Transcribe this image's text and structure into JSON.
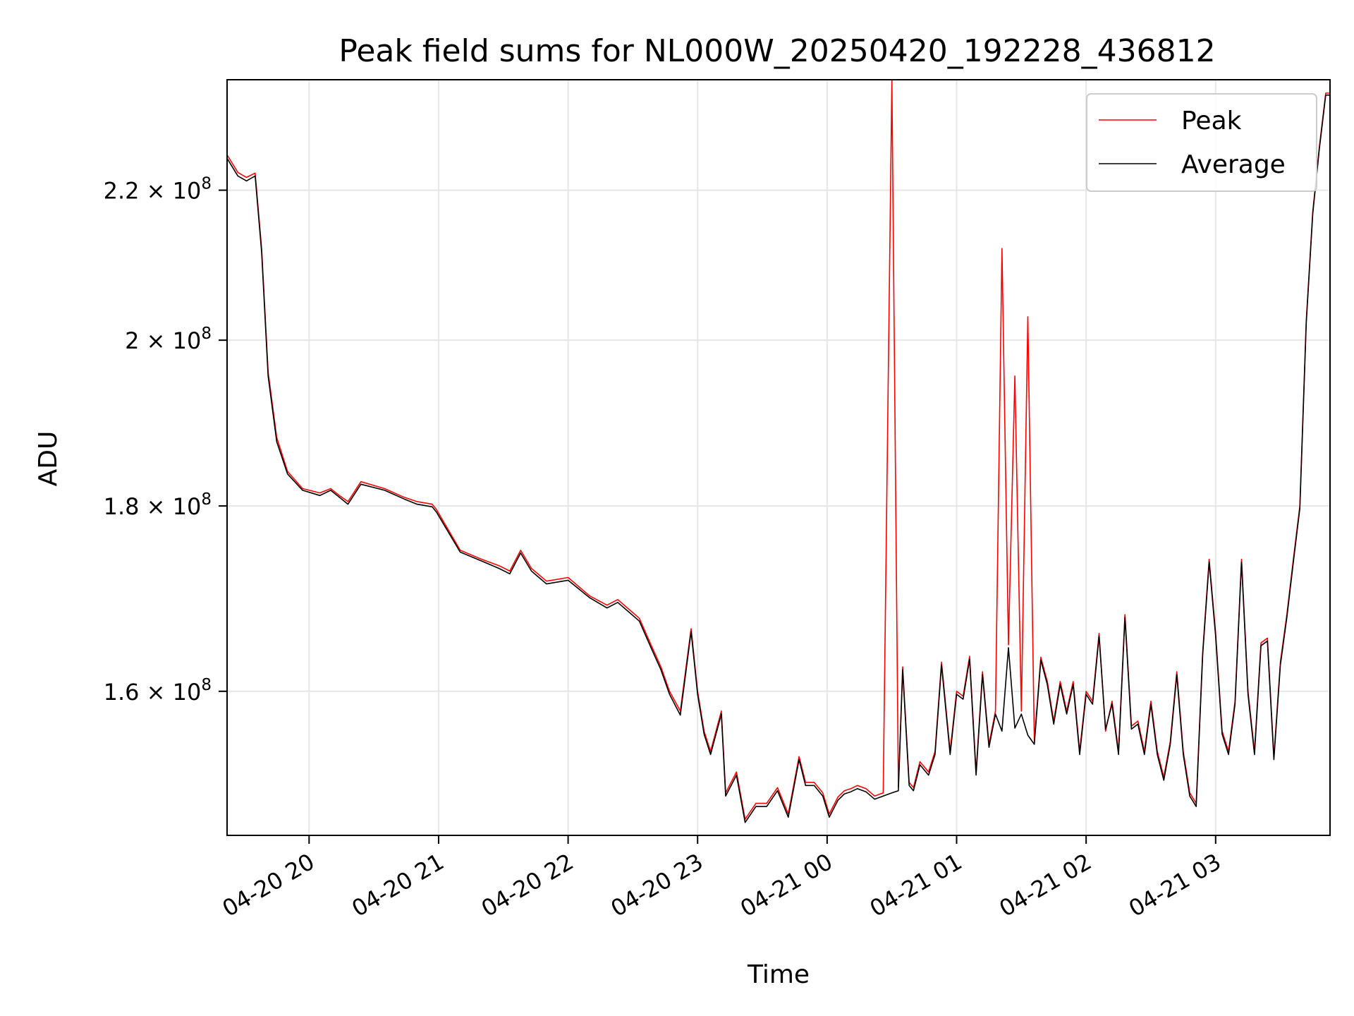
{
  "chart_data": {
    "type": "line",
    "title": "Peak field sums for NL000W_20250420_192228_436812",
    "xlabel": "Time",
    "ylabel": "ADU",
    "x_axis_type": "time",
    "xlim": [
      "2025-04-20 19:22",
      "2025-04-21 03:53"
    ],
    "ylim": [
      146000000,
      236000000
    ],
    "y_scale": "log",
    "grid": true,
    "legend_position": "top-right",
    "x_ticks": [
      {
        "value": "2025-04-20 20:00",
        "label": "04-20 20"
      },
      {
        "value": "2025-04-20 21:00",
        "label": "04-20 21"
      },
      {
        "value": "2025-04-20 22:00",
        "label": "04-20 22"
      },
      {
        "value": "2025-04-20 23:00",
        "label": "04-20 23"
      },
      {
        "value": "2025-04-21 00:00",
        "label": "04-21 00"
      },
      {
        "value": "2025-04-21 01:00",
        "label": "04-21 01"
      },
      {
        "value": "2025-04-21 02:00",
        "label": "04-21 02"
      },
      {
        "value": "2025-04-21 03:00",
        "label": "04-21 03"
      }
    ],
    "y_ticks": [
      {
        "value": 160000000,
        "mantissa": "1.6",
        "times": "×",
        "base": "10",
        "exp": "8"
      },
      {
        "value": 180000000,
        "mantissa": "1.8",
        "times": "×",
        "base": "10",
        "exp": "8"
      },
      {
        "value": 200000000,
        "mantissa": "2",
        "times": "×",
        "base": "10",
        "exp": "8"
      },
      {
        "value": 220000000,
        "mantissa": "2.2",
        "times": "×",
        "base": "10",
        "exp": "8"
      }
    ],
    "x": [
      "2025-04-20 19:22",
      "2025-04-20 19:27",
      "2025-04-20 19:31",
      "2025-04-20 19:35",
      "2025-04-20 19:38",
      "2025-04-20 19:41",
      "2025-04-20 19:45",
      "2025-04-20 19:50",
      "2025-04-20 19:57",
      "2025-04-20 20:05",
      "2025-04-20 20:10",
      "2025-04-20 20:14",
      "2025-04-20 20:18",
      "2025-04-20 20:24",
      "2025-04-20 20:35",
      "2025-04-20 20:44",
      "2025-04-20 20:50",
      "2025-04-20 20:57",
      "2025-04-20 20:59",
      "2025-04-20 21:10",
      "2025-04-20 21:20",
      "2025-04-20 21:28",
      "2025-04-20 21:33",
      "2025-04-20 21:38",
      "2025-04-20 21:43",
      "2025-04-20 21:50",
      "2025-04-20 22:00",
      "2025-04-20 22:10",
      "2025-04-20 22:18",
      "2025-04-20 22:23",
      "2025-04-20 22:33",
      "2025-04-20 22:38",
      "2025-04-20 22:43",
      "2025-04-20 22:47",
      "2025-04-20 22:52",
      "2025-04-20 22:57",
      "2025-04-20 23:00",
      "2025-04-20 23:03",
      "2025-04-20 23:06",
      "2025-04-20 23:11",
      "2025-04-20 23:13",
      "2025-04-20 23:18",
      "2025-04-20 23:22",
      "2025-04-20 23:27",
      "2025-04-20 23:32",
      "2025-04-20 23:37",
      "2025-04-20 23:42",
      "2025-04-20 23:47",
      "2025-04-20 23:50",
      "2025-04-20 23:54",
      "2025-04-20 23:58",
      "2025-04-21 00:01",
      "2025-04-21 00:05",
      "2025-04-21 00:08",
      "2025-04-21 00:11",
      "2025-04-21 00:14",
      "2025-04-21 00:18",
      "2025-04-21 00:22",
      "2025-04-21 00:26",
      "2025-04-21 00:30",
      "2025-04-21 00:33",
      "2025-04-21 00:35",
      "2025-04-21 00:38",
      "2025-04-21 00:40",
      "2025-04-21 00:43",
      "2025-04-21 00:47",
      "2025-04-21 00:50",
      "2025-04-21 00:53",
      "2025-04-21 00:57",
      "2025-04-21 01:00",
      "2025-04-21 01:03",
      "2025-04-21 01:06",
      "2025-04-21 01:09",
      "2025-04-21 01:12",
      "2025-04-21 01:15",
      "2025-04-21 01:18",
      "2025-04-21 01:21",
      "2025-04-21 01:24",
      "2025-04-21 01:27",
      "2025-04-21 01:30",
      "2025-04-21 01:33",
      "2025-04-21 01:36",
      "2025-04-21 01:39",
      "2025-04-21 01:42",
      "2025-04-21 01:45",
      "2025-04-21 01:48",
      "2025-04-21 01:51",
      "2025-04-21 01:54",
      "2025-04-21 01:57",
      "2025-04-21 02:00",
      "2025-04-21 02:03",
      "2025-04-21 02:06",
      "2025-04-21 02:09",
      "2025-04-21 02:12",
      "2025-04-21 02:15",
      "2025-04-21 02:18",
      "2025-04-21 02:21",
      "2025-04-21 02:24",
      "2025-04-21 02:27",
      "2025-04-21 02:30",
      "2025-04-21 02:33",
      "2025-04-21 02:36",
      "2025-04-21 02:39",
      "2025-04-21 02:42",
      "2025-04-21 02:45",
      "2025-04-21 02:48",
      "2025-04-21 02:51",
      "2025-04-21 02:54",
      "2025-04-21 02:57",
      "2025-04-21 03:00",
      "2025-04-21 03:03",
      "2025-04-21 03:06",
      "2025-04-21 03:09",
      "2025-04-21 03:12",
      "2025-04-21 03:15",
      "2025-04-21 03:18",
      "2025-04-21 03:21",
      "2025-04-21 03:24",
      "2025-04-21 03:27",
      "2025-04-21 03:30",
      "2025-04-21 03:33",
      "2025-04-21 03:36",
      "2025-04-21 03:39",
      "2025-04-21 03:42",
      "2025-04-21 03:45",
      "2025-04-21 03:48",
      "2025-04-21 03:51",
      "2025-04-21 03:53"
    ],
    "series": [
      {
        "name": "Peak",
        "color": "#ff0000",
        "values": [
          225000000,
          222500000,
          221800000,
          222400000,
          212000000,
          196000000,
          188000000,
          184000000,
          182000000,
          181500000,
          182000000,
          181200000,
          180500000,
          182800000,
          182000000,
          181000000,
          180500000,
          180200000,
          179600000,
          175000000,
          174000000,
          173300000,
          172700000,
          175000000,
          173000000,
          171600000,
          172000000,
          170000000,
          169000000,
          169600000,
          167600000,
          165000000,
          162500000,
          160000000,
          158000000,
          166500000,
          160000000,
          156000000,
          154000000,
          158000000,
          150000000,
          152000000,
          147500000,
          149000000,
          149000000,
          150500000,
          148000000,
          153500000,
          151000000,
          151000000,
          150000000,
          148000000,
          149600000,
          150200000,
          150400000,
          150700000,
          150400000,
          149700000,
          150000000,
          236000000,
          150500000,
          162500000,
          151000000,
          150500000,
          153000000,
          152000000,
          154000000,
          163000000,
          154000000,
          160000000,
          159500000,
          163600000,
          152000000,
          162000000,
          154700000,
          158000000,
          212000000,
          164800000,
          195500000,
          158000000,
          203000000,
          155000000,
          163500000,
          161000000,
          157000000,
          161000000,
          158000000,
          161000000,
          154000000,
          160000000,
          159000000,
          166000000,
          156000000,
          159000000,
          154000000,
          168000000,
          156500000,
          157000000,
          154000000,
          159000000,
          154000000,
          151500000,
          155000000,
          162000000,
          154000000,
          150000000,
          149000000,
          164000000,
          174000000,
          166000000,
          156000000,
          154000000,
          159000000,
          174000000,
          160000000,
          154000000,
          165000000,
          165500000,
          153500000,
          163000000,
          168000000,
          174000000,
          180000000,
          202500000,
          217000000,
          226000000,
          234000000,
          234000000
        ]
      },
      {
        "name": "Average",
        "color": "#000000",
        "values": [
          224500000,
          222000000,
          221300000,
          222000000,
          211500000,
          195500000,
          187500000,
          183700000,
          181800000,
          181200000,
          181800000,
          181000000,
          180200000,
          182500000,
          181800000,
          180800000,
          180200000,
          179900000,
          179300000,
          174800000,
          173800000,
          173000000,
          172400000,
          174700000,
          172700000,
          171300000,
          171700000,
          169800000,
          168700000,
          169300000,
          167300000,
          164700000,
          162200000,
          159700000,
          157600000,
          166200000,
          159700000,
          155700000,
          153700000,
          157700000,
          149700000,
          151700000,
          147200000,
          148700000,
          148700000,
          150200000,
          147700000,
          153200000,
          150700000,
          150700000,
          149700000,
          147700000,
          149300000,
          149900000,
          150100000,
          150400000,
          150100000,
          149400000,
          149700000,
          150000000,
          150200000,
          162200000,
          150700000,
          150200000,
          152700000,
          151700000,
          153700000,
          162700000,
          153700000,
          159700000,
          159200000,
          163300000,
          151700000,
          161700000,
          154400000,
          157700000,
          156000000,
          164500000,
          156300000,
          157700000,
          155600000,
          154700000,
          163200000,
          160700000,
          156700000,
          160700000,
          157700000,
          160700000,
          153700000,
          159700000,
          158700000,
          165700000,
          156200000,
          158700000,
          153700000,
          167700000,
          156200000,
          156700000,
          153700000,
          158700000,
          153700000,
          151200000,
          154700000,
          161700000,
          153700000,
          149700000,
          148700000,
          163700000,
          173700000,
          165700000,
          155700000,
          153700000,
          158700000,
          173700000,
          159700000,
          153700000,
          164700000,
          165200000,
          153200000,
          162700000,
          167700000,
          173700000,
          179700000,
          202200000,
          216700000,
          225700000,
          233700000,
          233700000
        ]
      }
    ]
  }
}
